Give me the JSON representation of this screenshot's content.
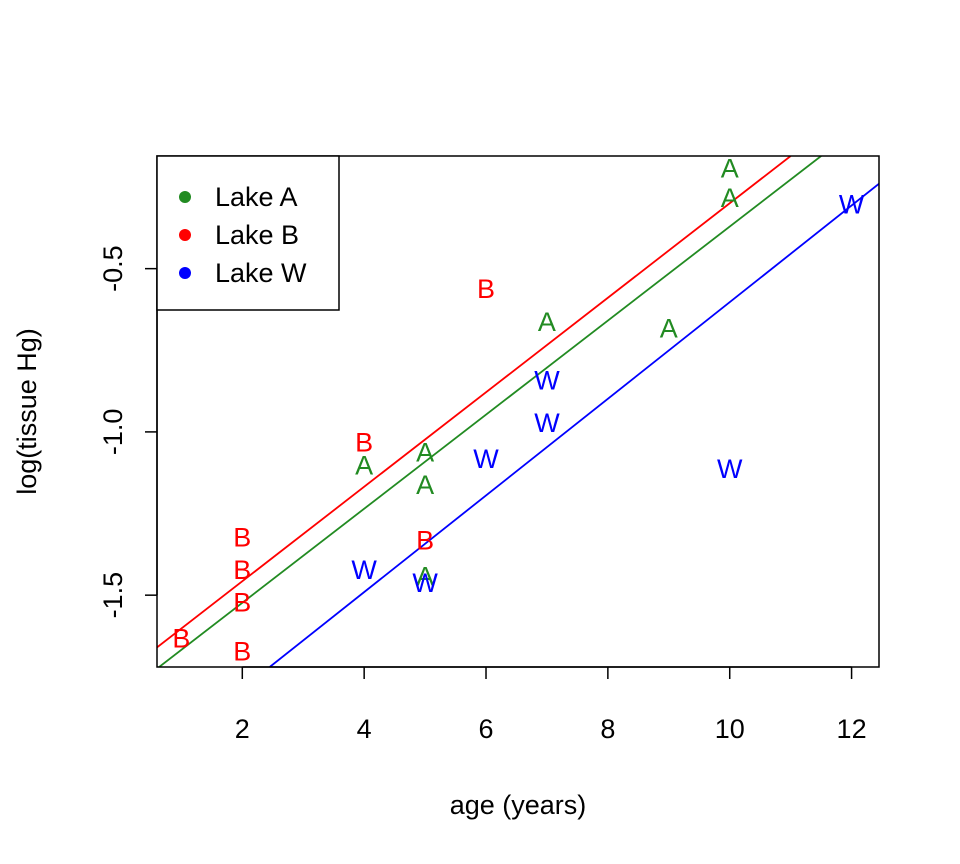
{
  "chart_data": {
    "type": "scatter",
    "title": "",
    "xlabel": "age (years)",
    "ylabel": "log(tissue Hg)",
    "xlim": [
      0.6,
      12.45
    ],
    "ylim": [
      -1.72,
      -0.155
    ],
    "xticks": [
      2,
      4,
      6,
      8,
      10,
      12
    ],
    "yticks": [
      -1.5,
      -1.0,
      -0.5
    ],
    "xtick_labels": [
      "2",
      "4",
      "6",
      "8",
      "10",
      "12"
    ],
    "ytick_labels": [
      "-1.5",
      "-1.0",
      "-0.5"
    ],
    "grid": false,
    "legend_position": "top-left",
    "series": [
      {
        "name": "Lake A",
        "marker": "A",
        "color": "#228B22",
        "points": [
          [
            4,
            -1.1
          ],
          [
            5,
            -1.06
          ],
          [
            5,
            -1.16
          ],
          [
            5,
            -1.44
          ],
          [
            7,
            -0.66
          ],
          [
            9,
            -0.68
          ],
          [
            10,
            -0.19
          ],
          [
            10,
            -0.28
          ]
        ],
        "fit_line": [
          [
            0.6,
            -1.725
          ],
          [
            11.5,
            -0.155
          ]
        ]
      },
      {
        "name": "Lake B",
        "marker": "B",
        "color": "#FF0000",
        "points": [
          [
            1,
            -1.63
          ],
          [
            2,
            -1.32
          ],
          [
            2,
            -1.42
          ],
          [
            2,
            -1.52
          ],
          [
            2,
            -1.67
          ],
          [
            4,
            -1.03
          ],
          [
            5,
            -1.33
          ],
          [
            6,
            -0.56
          ]
        ],
        "fit_line": [
          [
            0.6,
            -1.66
          ],
          [
            11.0,
            -0.155
          ]
        ]
      },
      {
        "name": "Lake W",
        "marker": "W",
        "color": "#0000FF",
        "points": [
          [
            4,
            -1.42
          ],
          [
            5,
            -1.46
          ],
          [
            6,
            -1.08
          ],
          [
            7,
            -0.84
          ],
          [
            7,
            -0.97
          ],
          [
            10,
            -1.11
          ],
          [
            12,
            -0.3
          ]
        ],
        "fit_line": [
          [
            2.45,
            -1.72
          ],
          [
            12.45,
            -0.24
          ]
        ]
      }
    ]
  }
}
